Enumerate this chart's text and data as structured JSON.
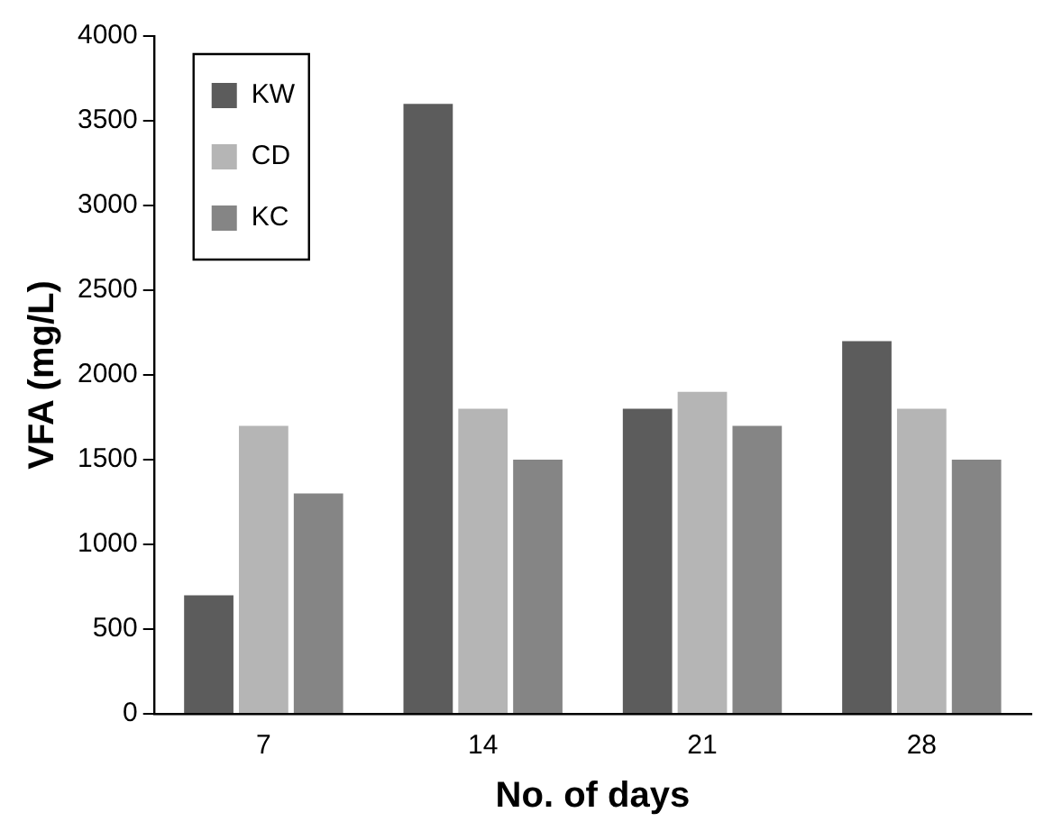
{
  "chart_data": {
    "type": "bar",
    "xlabel": "No. of days",
    "ylabel": "VFA (mg/L)",
    "categories": [
      "7",
      "14",
      "21",
      "28"
    ],
    "series": [
      {
        "name": "KW",
        "color": "#5c5c5c",
        "values": [
          700,
          3600,
          1800,
          2200
        ]
      },
      {
        "name": "CD",
        "color": "#b5b5b5",
        "values": [
          1700,
          1800,
          1900,
          1800
        ]
      },
      {
        "name": "KC",
        "color": "#858585",
        "values": [
          1300,
          1500,
          1700,
          1500
        ]
      }
    ],
    "ylim": [
      0,
      4000
    ],
    "yticks": [
      0,
      500,
      1000,
      1500,
      2000,
      2500,
      3000,
      3500,
      4000
    ],
    "grid": false,
    "legend": "top left"
  }
}
